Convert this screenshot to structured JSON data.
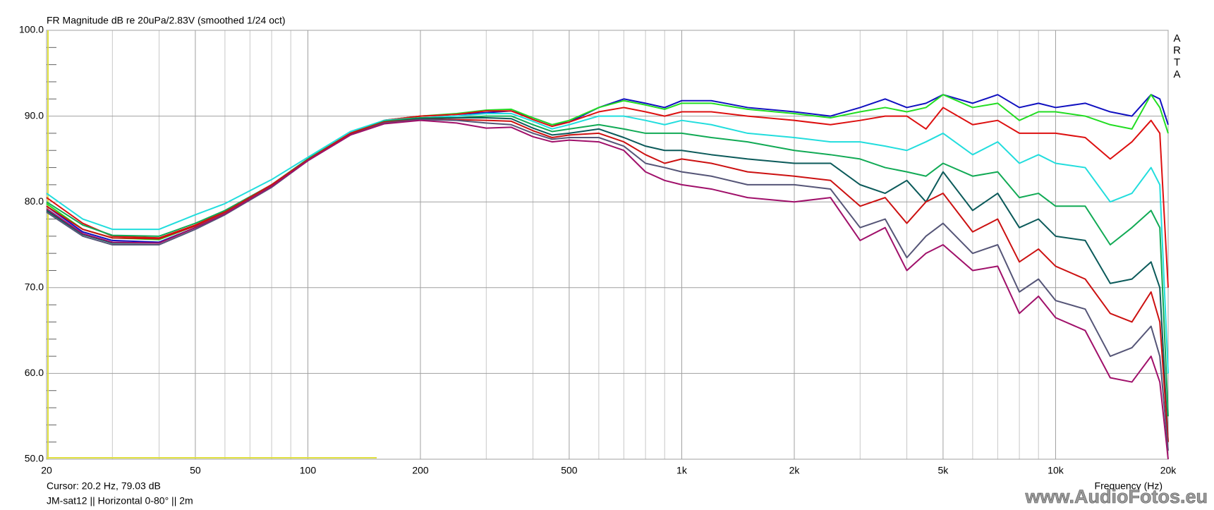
{
  "chart_data": {
    "type": "line",
    "title": "FR Magnitude dB re 20uPa/2.83V (smoothed 1/24 oct)",
    "brand": "ARTA",
    "x_label": "Frequency (Hz)",
    "cursor_text": "Cursor: 20.2 Hz, 79.03 dB",
    "caption": "JM-sat12  ||  Horizontal 0-80°  || 2m",
    "watermark": "www.AudioFotos.eu",
    "x_log": true,
    "grid": true,
    "xlim": [
      20,
      20000
    ],
    "ylim": [
      50,
      100
    ],
    "xticks": [
      20,
      50,
      100,
      200,
      500,
      {
        "value": 1000,
        "label": "1k"
      },
      {
        "value": 2000,
        "label": "2k"
      },
      {
        "value": 5000,
        "label": "5k"
      },
      {
        "value": 10000,
        "label": "10k"
      },
      {
        "value": 20000,
        "label": "20k"
      }
    ],
    "x_minor_ticks": [
      30,
      40,
      60,
      70,
      80,
      90,
      300,
      400,
      600,
      700,
      800,
      900,
      3000,
      4000,
      6000,
      7000,
      8000,
      9000
    ],
    "yticks": [
      {
        "value": 50,
        "label": "50.0"
      },
      {
        "value": 60,
        "label": "60.0"
      },
      {
        "value": 70,
        "label": "70.0"
      },
      {
        "value": 80,
        "label": "80.0"
      },
      {
        "value": 90,
        "label": "90.0"
      },
      {
        "value": 100,
        "label": "100.0"
      }
    ],
    "y_minor_ticks": [
      52,
      54,
      56,
      58,
      62,
      64,
      66,
      68,
      72,
      74,
      76,
      78,
      82,
      84,
      86,
      88,
      92,
      94,
      96,
      98
    ],
    "x": [
      20,
      25,
      30,
      40,
      50,
      60,
      80,
      100,
      130,
      160,
      200,
      250,
      300,
      350,
      400,
      450,
      500,
      600,
      700,
      800,
      900,
      1000,
      1200,
      1500,
      2000,
      2500,
      3000,
      3500,
      4000,
      4500,
      5000,
      6000,
      7000,
      8000,
      9000,
      10000,
      12000,
      14000,
      16000,
      18000,
      19000,
      20000
    ],
    "series": [
      {
        "color": "#1010c0",
        "values": [
          79.5,
          76.5,
          75.5,
          75.3,
          77,
          78.6,
          81.8,
          84.9,
          88,
          89.5,
          90,
          90.2,
          90.4,
          90.6,
          89.8,
          89,
          89.3,
          91,
          92,
          91.5,
          91,
          91.8,
          91.8,
          91,
          90.5,
          90,
          91,
          92,
          91,
          91.5,
          92.5,
          91.5,
          92.5,
          91,
          91.5,
          91,
          91.5,
          90.5,
          90,
          92.5,
          92,
          89
        ]
      },
      {
        "color": "#22dd22",
        "values": [
          79.8,
          76.8,
          75.8,
          75.6,
          77.2,
          78.8,
          82,
          85,
          88,
          89.5,
          90,
          90.3,
          90.7,
          90.8,
          89.8,
          89,
          89.5,
          91,
          91.8,
          91.3,
          90.8,
          91.5,
          91.5,
          90.8,
          90.3,
          89.8,
          90.5,
          91,
          90.5,
          91,
          92.5,
          91,
          91.5,
          89.5,
          90.5,
          90.5,
          90,
          89,
          88.5,
          92.5,
          91,
          88
        ]
      },
      {
        "color": "#dd1010",
        "values": [
          80.5,
          77.5,
          76,
          75.8,
          77.3,
          78.9,
          82,
          85,
          88,
          89.5,
          90,
          90.2,
          90.6,
          90.6,
          89.6,
          88.8,
          89.3,
          90.5,
          91,
          90.5,
          90,
          90.5,
          90.5,
          90,
          89.5,
          89,
          89.5,
          90,
          90,
          88.5,
          91,
          89,
          89.5,
          88,
          88,
          88,
          87.5,
          85,
          87,
          89.5,
          88,
          70
        ]
      },
      {
        "color": "#22dddd",
        "values": [
          81,
          78,
          76.8,
          76.8,
          78.5,
          79.8,
          82.6,
          85.2,
          88.2,
          89.5,
          89.8,
          90,
          90.3,
          90.3,
          89.4,
          88.5,
          89,
          90,
          90,
          89.5,
          89,
          89.5,
          89,
          88,
          87.5,
          87,
          87,
          86.5,
          86,
          87,
          88,
          85.5,
          87,
          84.5,
          85.5,
          84.5,
          84,
          80,
          81,
          84,
          82,
          60
        ]
      },
      {
        "color": "#11aa55",
        "values": [
          80,
          77.3,
          76.1,
          76,
          77.5,
          79,
          82,
          85,
          88,
          89.4,
          89.8,
          89.8,
          90,
          90,
          89,
          88.2,
          88.5,
          89,
          88.5,
          88,
          88,
          88,
          87.5,
          87,
          86,
          85.5,
          85,
          84,
          83.5,
          83,
          84.5,
          83,
          83.5,
          80.5,
          81,
          79.5,
          79.5,
          75,
          77,
          79,
          77,
          55
        ]
      },
      {
        "color": "#0b5a5a",
        "values": [
          79,
          76.2,
          75.2,
          75.2,
          77,
          78.6,
          81.8,
          84.8,
          87.9,
          89.3,
          89.7,
          89.8,
          89.8,
          89.7,
          88.6,
          87.8,
          88,
          88.5,
          87.5,
          86.5,
          86,
          86,
          85.5,
          85,
          84.5,
          84.5,
          82,
          81,
          82.5,
          80,
          83.5,
          79,
          81,
          77,
          78,
          76,
          75.5,
          70.5,
          71,
          73,
          70,
          52
        ]
      },
      {
        "color": "#cc1111",
        "values": [
          79.5,
          76.8,
          75.8,
          75.7,
          77.2,
          78.8,
          82,
          84.9,
          88,
          89.3,
          89.6,
          89.6,
          89.5,
          89.4,
          88.3,
          87.5,
          87.8,
          88,
          87,
          85.5,
          84.5,
          85,
          84.5,
          83.5,
          83,
          82.5,
          79.5,
          80.5,
          77.5,
          80,
          81,
          76.5,
          78,
          73,
          74.5,
          72.5,
          71,
          67,
          66,
          69.5,
          66,
          52
        ]
      },
      {
        "color": "#555577",
        "values": [
          78.8,
          76,
          75,
          75,
          76.8,
          78.5,
          81.7,
          84.8,
          87.8,
          89.2,
          89.6,
          89.5,
          89.2,
          89,
          88,
          87.3,
          87.5,
          87.5,
          86.5,
          84.5,
          84,
          83.5,
          83,
          82,
          82,
          81.5,
          77,
          78,
          73.5,
          76,
          77.5,
          74,
          75,
          69.5,
          71,
          68.5,
          67.5,
          62,
          63,
          65.5,
          62,
          51
        ]
      },
      {
        "color": "#a0106a",
        "values": [
          79.2,
          76.3,
          75.3,
          75.2,
          77,
          78.6,
          81.8,
          84.8,
          87.8,
          89.1,
          89.5,
          89.2,
          88.6,
          88.7,
          87.6,
          87,
          87.2,
          87,
          86,
          83.5,
          82.5,
          82,
          81.5,
          80.5,
          80,
          80.5,
          75.5,
          77,
          72,
          74,
          75,
          72,
          72.5,
          67,
          69,
          66.5,
          65,
          59.5,
          59,
          62,
          59,
          50
        ]
      }
    ]
  }
}
